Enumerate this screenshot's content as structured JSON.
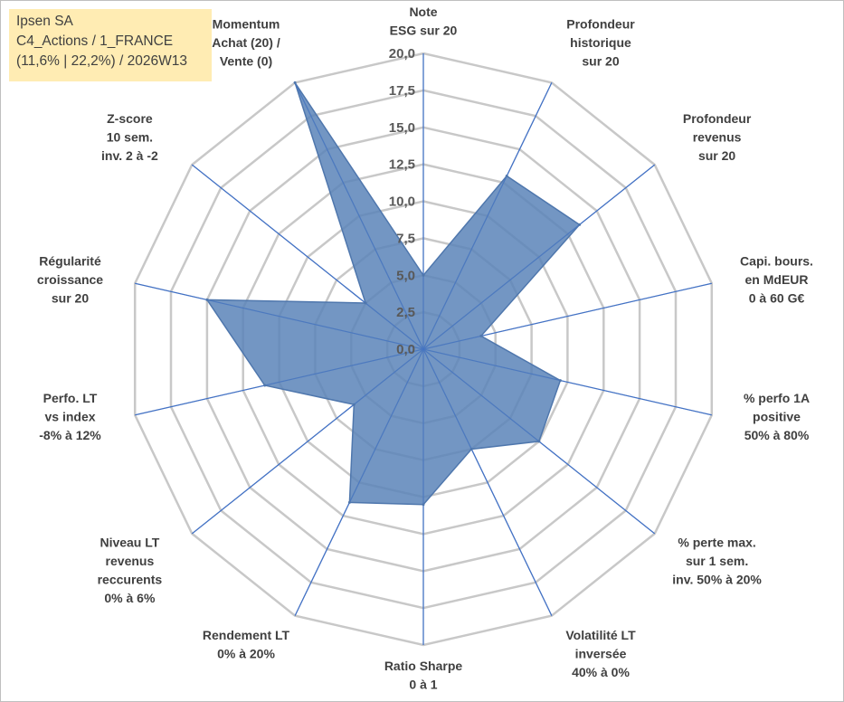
{
  "header": {
    "company": "Ipsen SA",
    "category": "C4_Actions / 1_FRANCE",
    "stats": "(11,6% | 22,2%) / 2026W13"
  },
  "chart_data": {
    "type": "radar",
    "title": "",
    "rmin": 0,
    "rmax": 20,
    "tick_labels": [
      "0,0",
      "2,5",
      "5,0",
      "7,5",
      "10,0",
      "12,5",
      "15,0",
      "17,5",
      "20,0"
    ],
    "axes": [
      {
        "lines": [
          "Note",
          "ESG sur 20"
        ],
        "value": 5.0
      },
      {
        "lines": [
          "Profondeur",
          "historique",
          "sur 20"
        ],
        "value": 13.0
      },
      {
        "lines": [
          "Profondeur",
          "revenus",
          "sur 20"
        ],
        "value": 13.5
      },
      {
        "lines": [
          "Capi. bours.",
          "en MdEUR",
          "0 à 60 G€"
        ],
        "value": 4.0
      },
      {
        "lines": [
          "% perfo 1A",
          "positive",
          "50% à 80%"
        ],
        "value": 9.5
      },
      {
        "lines": [
          "% perte max.",
          "sur 1 sem.",
          "inv. 50% à 20%"
        ],
        "value": 10.0
      },
      {
        "lines": [
          "Volatilité LT",
          "inversée",
          "40% à 0%"
        ],
        "value": 7.5
      },
      {
        "lines": [
          "Ratio Sharpe",
          "0 à 1"
        ],
        "value": 10.5
      },
      {
        "lines": [
          "Rendement LT",
          "0% à 20%"
        ],
        "value": 11.5
      },
      {
        "lines": [
          "Niveau LT",
          "revenus",
          "reccurents",
          "0% à 6%"
        ],
        "value": 6.0
      },
      {
        "lines": [
          "Perfo. LT",
          "vs index",
          "-8% à 12%"
        ],
        "value": 11.0
      },
      {
        "lines": [
          "Régularité",
          "croissance",
          "sur 20"
        ],
        "value": 15.0
      },
      {
        "lines": [
          "Z-score",
          "10 sem.",
          "inv. 2 à -2"
        ],
        "value": 5.0
      },
      {
        "lines": [
          "Momentum",
          "Achat (20) /",
          "Vente (0)"
        ],
        "value": 20.0
      }
    ],
    "colors": {
      "fill": "#5b84b8",
      "edge": "#4f77ad",
      "grid": "#c8c8c8",
      "spoke": "#4472c4",
      "text": "#404040"
    }
  }
}
